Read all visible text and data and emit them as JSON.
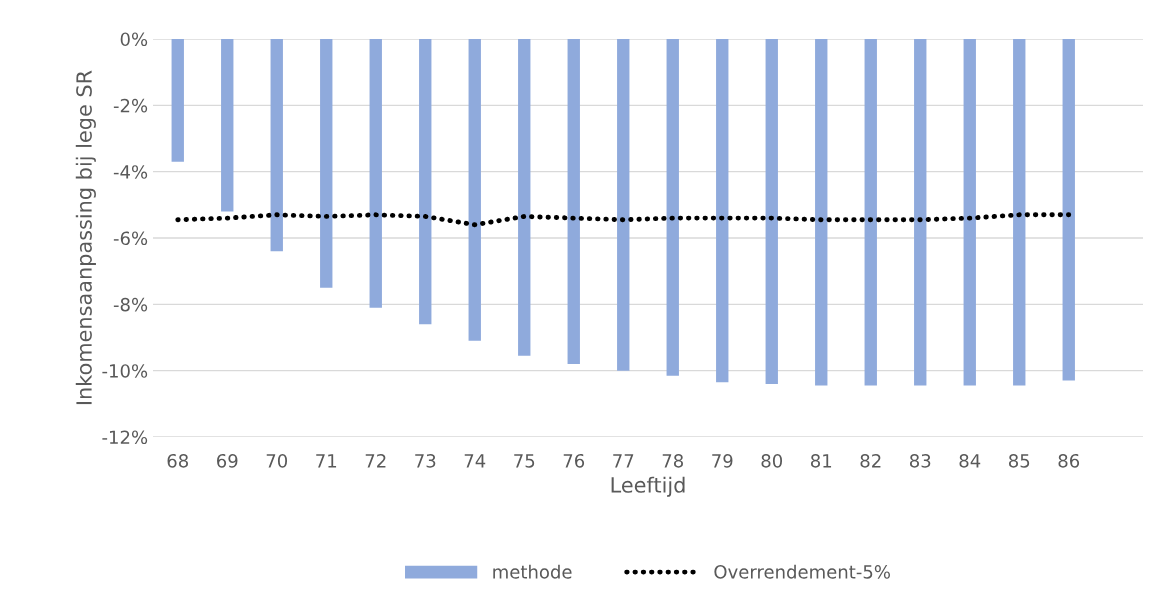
{
  "chart_data": {
    "type": "bar",
    "xlabel": "Leeftijd",
    "ylabel": "Inkomensaanpassing bij lege SR",
    "categories": [
      "68",
      "69",
      "70",
      "71",
      "72",
      "73",
      "74",
      "75",
      "76",
      "77",
      "78",
      "79",
      "80",
      "81",
      "82",
      "83",
      "84",
      "85",
      "86",
      null
    ],
    "series": [
      {
        "name": "methode",
        "color": "#8faadc",
        "values": [
          -3.7,
          -5.2,
          -6.4,
          -7.5,
          -8.1,
          -8.6,
          -9.1,
          -9.55,
          -9.8,
          -10.0,
          -10.15,
          -10.35,
          -10.4,
          -10.45,
          -10.45,
          -10.45,
          -10.45,
          -10.45,
          -10.3,
          null
        ]
      },
      {
        "name": "Overrendement-5%",
        "type": "line",
        "color": "#000000",
        "line_style": "dotted",
        "values": [
          -5.45,
          -5.4,
          -5.3,
          -5.35,
          -5.3,
          -5.35,
          -5.6,
          -5.35,
          -5.4,
          -5.45,
          -5.4,
          -5.4,
          -5.4,
          -5.45,
          -5.45,
          -5.45,
          -5.4,
          -5.3,
          -5.3,
          null
        ]
      }
    ],
    "ylim": [
      -12,
      0
    ],
    "yticks": [
      {
        "value": 0,
        "label": "0%"
      },
      {
        "value": -2,
        "label": "-2%"
      },
      {
        "value": -4,
        "label": "-4%"
      },
      {
        "value": -6,
        "label": "-6%"
      },
      {
        "value": -8,
        "label": "-8%"
      },
      {
        "value": -10,
        "label": "-10%"
      },
      {
        "value": -12,
        "label": "-12%"
      }
    ],
    "grid": "y",
    "legend": "bottom"
  }
}
